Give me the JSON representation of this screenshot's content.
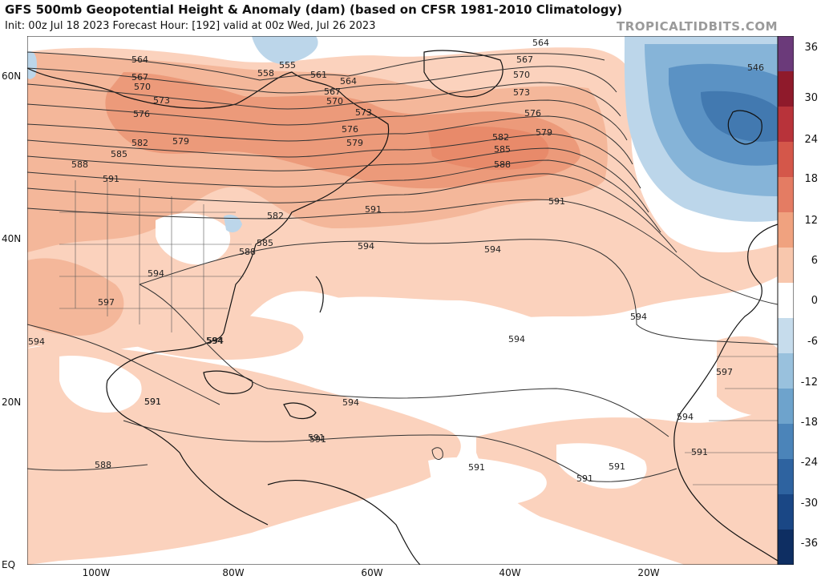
{
  "header": {
    "title": "GFS 500mb Geopotential Height & Anomaly (dam) (based on CFSR 1981-2010 Climatology)",
    "subtitle": "Init: 00z Jul 18 2023   Forecast Hour: [192]   valid at 00z Wed, Jul 26 2023",
    "watermark": "TROPICALTIDBITS.COM"
  },
  "axes": {
    "lat_labels": [
      "60N",
      "40N",
      "20N",
      "EQ"
    ],
    "lon_labels": [
      "100W",
      "80W",
      "60W",
      "40W",
      "20W"
    ]
  },
  "colorbar": {
    "labels": [
      "36",
      "30",
      "24",
      "18",
      "12",
      "6",
      "0",
      "-6",
      "-12",
      "-18",
      "-24",
      "-30",
      "-36"
    ],
    "colors": [
      "#6b3a7a",
      "#8f1a2b",
      "#b8333a",
      "#d4574a",
      "#e47c63",
      "#f0a27f",
      "#f8c7ad",
      "#ffffff",
      "#c6dcec",
      "#99c1dd",
      "#6ea3cc",
      "#4b84b9",
      "#2e63a0",
      "#1a4785",
      "#0e2e62"
    ]
  },
  "map": {
    "colors": {
      "ocean_pos_light": "#fbd2bd",
      "pos_medium": "#f4b79a",
      "pos_strong": "#ec9a7a",
      "neg_light": "#bcd6ea",
      "neg_medium": "#86b4d8",
      "neg_strong": "#5b92c4",
      "contour": "#333333",
      "coast": "#111111"
    },
    "contour_labels": [
      "564",
      "567",
      "570",
      "573",
      "576",
      "579",
      "582",
      "585",
      "588",
      "591",
      "558",
      "555",
      "561",
      "564",
      "567",
      "570",
      "573",
      "576",
      "579",
      "582",
      "585",
      "588",
      "591",
      "594",
      "594",
      "597",
      "594",
      "594",
      "591",
      "591",
      "588",
      "564",
      "567",
      "570",
      "573",
      "576",
      "579",
      "582",
      "585",
      "588",
      "591",
      "594",
      "546",
      "594",
      "594",
      "594",
      "591",
      "591",
      "591",
      "591",
      "591",
      "594",
      "597",
      "594",
      "591"
    ]
  }
}
